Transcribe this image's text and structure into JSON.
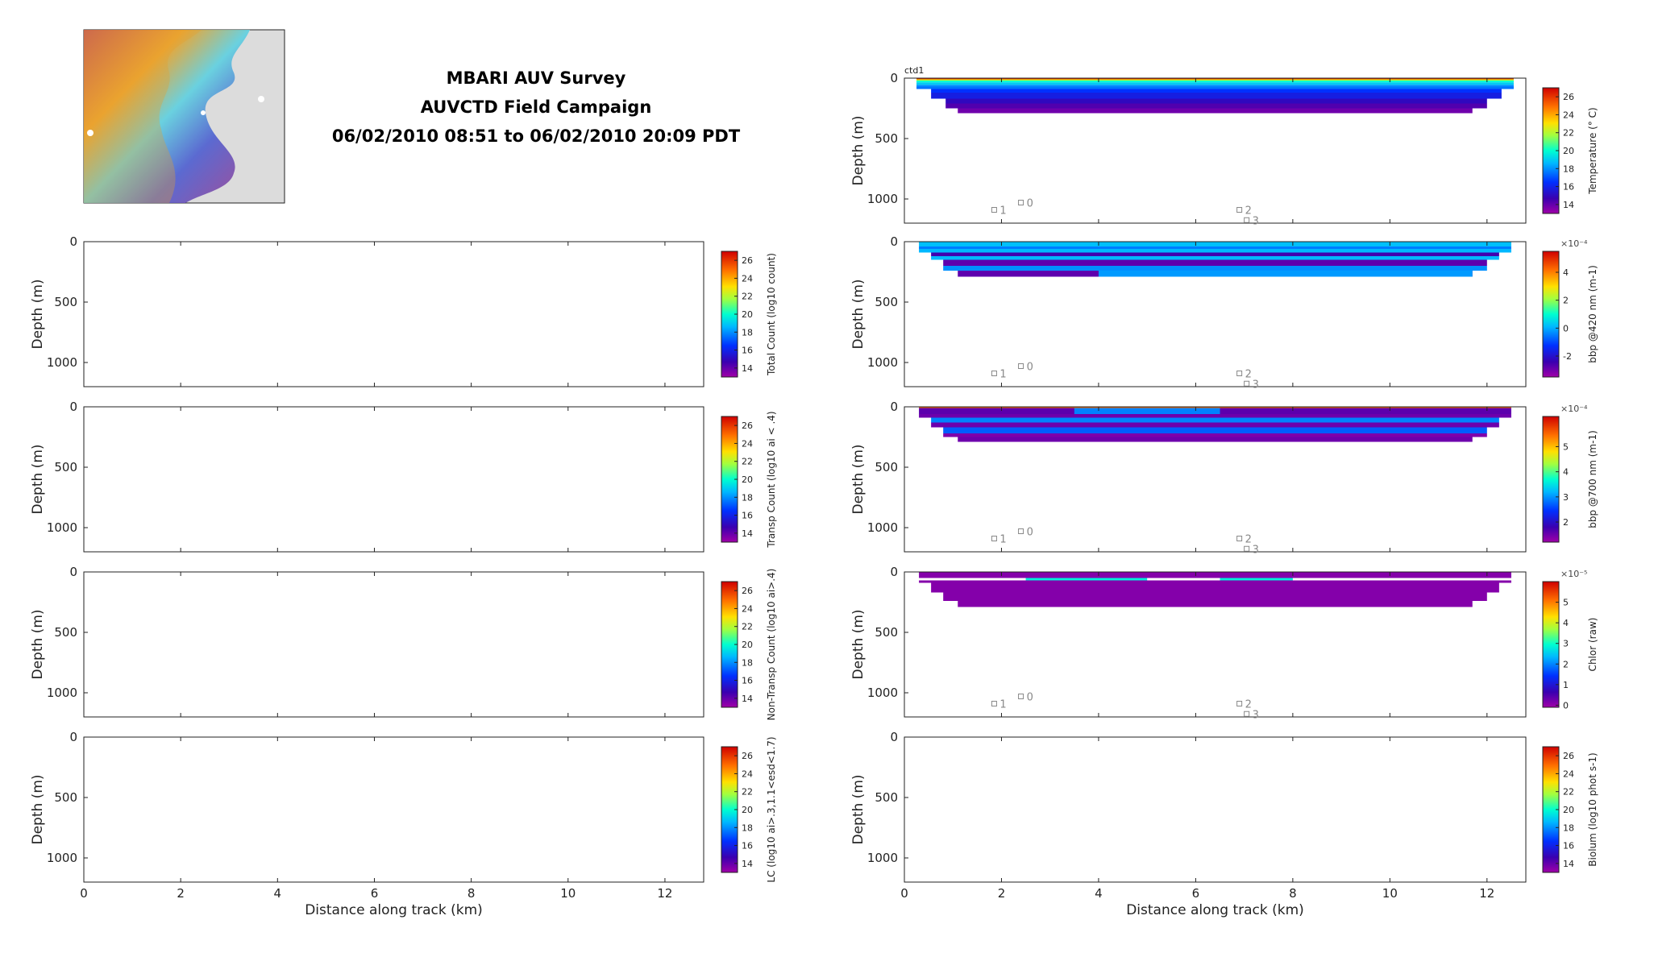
{
  "figure": {
    "title_lines": [
      "MBARI AUV Survey",
      "AUVCTD Field Campaign",
      "06/02/2010 08:51 to 06/02/2010 20:09 PDT"
    ],
    "map_inset": {
      "icon": "bathymetry-map-icon"
    }
  },
  "chart_data": [
    {
      "id": "total-count",
      "type": "heatmap",
      "column": "left",
      "row": 0,
      "xlim": [
        0,
        12.8
      ],
      "ylim": [
        1200,
        0
      ],
      "xticks": [
        0,
        2,
        4,
        6,
        8,
        10,
        12
      ],
      "yticks": [
        0,
        500,
        1000
      ],
      "xlabel": "",
      "ylabel": "Depth (m)",
      "colorbar": {
        "label": "Total Count (log10 count)",
        "range": [
          13,
          27
        ],
        "ticks": [
          "26",
          "24",
          "22",
          "20",
          "18",
          "16",
          "14"
        ]
      },
      "data": [],
      "markers": [],
      "plot_label": ""
    },
    {
      "id": "transp-count",
      "type": "heatmap",
      "column": "left",
      "row": 1,
      "xlim": [
        0,
        12.8
      ],
      "ylim": [
        1200,
        0
      ],
      "xticks": [
        0,
        2,
        4,
        6,
        8,
        10,
        12
      ],
      "yticks": [
        0,
        500,
        1000
      ],
      "xlabel": "",
      "ylabel": "Depth (m)",
      "colorbar": {
        "label": "Transp Count (log10 ai < .4)",
        "range": [
          13,
          27
        ],
        "ticks": [
          "26",
          "24",
          "22",
          "20",
          "18",
          "16",
          "14"
        ]
      },
      "data": [],
      "markers": [],
      "plot_label": ""
    },
    {
      "id": "non-transp-count",
      "type": "heatmap",
      "column": "left",
      "row": 2,
      "xlim": [
        0,
        12.8
      ],
      "ylim": [
        1200,
        0
      ],
      "xticks": [
        0,
        2,
        4,
        6,
        8,
        10,
        12
      ],
      "yticks": [
        0,
        500,
        1000
      ],
      "xlabel": "",
      "ylabel": "Depth (m)",
      "colorbar": {
        "label": "Non-Transp Count (log10 ai>.4)",
        "range": [
          13,
          27
        ],
        "ticks": [
          "26",
          "24",
          "22",
          "20",
          "18",
          "16",
          "14"
        ]
      },
      "data": [],
      "markers": [],
      "plot_label": ""
    },
    {
      "id": "lc",
      "type": "heatmap",
      "column": "left",
      "row": 3,
      "xlim": [
        0,
        12.8
      ],
      "ylim": [
        1200,
        0
      ],
      "xticks": [
        0,
        2,
        4,
        6,
        8,
        10,
        12
      ],
      "yticks": [
        0,
        500,
        1000
      ],
      "xlabel": "Distance along track (km)",
      "ylabel": "Depth (m)",
      "colorbar": {
        "label": "LC (log10 ai>.3,1.1<esd<1.7)",
        "range": [
          13,
          27
        ],
        "ticks": [
          "26",
          "24",
          "22",
          "20",
          "18",
          "16",
          "14"
        ]
      },
      "data": [],
      "markers": [],
      "plot_label": ""
    },
    {
      "id": "temperature",
      "type": "heatmap",
      "column": "right",
      "row": -1,
      "xlim": [
        0,
        12.8
      ],
      "ylim": [
        1200,
        0
      ],
      "xticks": [
        0,
        2,
        4,
        6,
        8,
        10,
        12
      ],
      "yticks": [
        0,
        500,
        1000
      ],
      "xlabel": "",
      "ylabel": "Depth (m)",
      "plot_label": "ctd1",
      "colorbar": {
        "label": "Temperature (° C)",
        "range": [
          13,
          27
        ],
        "ticks": [
          "26",
          "24",
          "22",
          "20",
          "18",
          "16",
          "14"
        ]
      },
      "data": [
        {
          "x": [
            0.25,
            12.55
          ],
          "y": [
            0,
            10
          ],
          "v": 26
        },
        {
          "x": [
            0.25,
            12.55
          ],
          "y": [
            10,
            20
          ],
          "v": 22.5
        },
        {
          "x": [
            0.25,
            12.55
          ],
          "y": [
            20,
            35
          ],
          "v": 20
        },
        {
          "x": [
            0.25,
            12.55
          ],
          "y": [
            35,
            55
          ],
          "v": 19
        },
        {
          "x": [
            0.25,
            12.55
          ],
          "y": [
            55,
            70
          ],
          "v": 18
        },
        {
          "x": [
            0.25,
            12.55
          ],
          "y": [
            70,
            90
          ],
          "v": 17.5
        },
        {
          "x": [
            0.55,
            12.3
          ],
          "y": [
            90,
            120
          ],
          "v": 16.5
        },
        {
          "x": [
            0.55,
            12.3
          ],
          "y": [
            120,
            170
          ],
          "v": 15.8
        },
        {
          "x": [
            0.85,
            12.0
          ],
          "y": [
            170,
            210
          ],
          "v": 15
        },
        {
          "x": [
            0.85,
            12.0
          ],
          "y": [
            210,
            250
          ],
          "v": 14.3
        },
        {
          "x": [
            1.1,
            11.7
          ],
          "y": [
            250,
            290
          ],
          "v": 13.8
        }
      ],
      "markers": [
        {
          "label": "0",
          "x": 2.4,
          "y": 1030
        },
        {
          "label": "1",
          "x": 1.85,
          "y": 1090
        },
        {
          "label": "2",
          "x": 6.9,
          "y": 1090
        },
        {
          "label": "3",
          "x": 7.05,
          "y": 1175
        }
      ]
    },
    {
      "id": "bbp420",
      "type": "heatmap",
      "column": "right",
      "row": 0,
      "xlim": [
        0,
        12.8
      ],
      "ylim": [
        1200,
        0
      ],
      "xticks": [
        0,
        2,
        4,
        6,
        8,
        10,
        12
      ],
      "yticks": [
        0,
        500,
        1000
      ],
      "xlabel": "",
      "ylabel": "Depth (m)",
      "plot_label": "",
      "colorbar": {
        "label": "bbp @420 nm (m-1)",
        "range": [
          -3.5,
          5.5
        ],
        "ticks": [
          "4",
          "2",
          "0",
          "-2"
        ],
        "multiplier": "×10⁻⁴"
      },
      "data": [
        {
          "x": [
            0.3,
            12.5
          ],
          "y": [
            0,
            40
          ],
          "v": 0.2
        },
        {
          "x": [
            0.3,
            12.5
          ],
          "y": [
            40,
            60
          ],
          "v": -0.5
        },
        {
          "x": [
            0.3,
            12.5
          ],
          "y": [
            60,
            90
          ],
          "v": 0.1
        },
        {
          "x": [
            0.55,
            12.25
          ],
          "y": [
            90,
            120
          ],
          "v": -2.5
        },
        {
          "x": [
            0.55,
            12.25
          ],
          "y": [
            120,
            150
          ],
          "v": 0.1
        },
        {
          "x": [
            0.8,
            12.0
          ],
          "y": [
            150,
            200
          ],
          "v": -2.8
        },
        {
          "x": [
            0.8,
            12.0
          ],
          "y": [
            200,
            240
          ],
          "v": -0.3
        },
        {
          "x": [
            1.1,
            11.7
          ],
          "y": [
            240,
            290
          ],
          "v": -2.8
        },
        {
          "x": [
            4.0,
            11.7
          ],
          "y": [
            240,
            290
          ],
          "v": -0.2
        }
      ],
      "markers": [
        {
          "label": "0",
          "x": 2.4,
          "y": 1030
        },
        {
          "label": "1",
          "x": 1.85,
          "y": 1090
        },
        {
          "label": "2",
          "x": 6.9,
          "y": 1090
        },
        {
          "label": "3",
          "x": 7.05,
          "y": 1175
        }
      ]
    },
    {
      "id": "bbp700",
      "type": "heatmap",
      "column": "right",
      "row": 1,
      "xlim": [
        0,
        12.8
      ],
      "ylim": [
        1200,
        0
      ],
      "xticks": [
        0,
        2,
        4,
        6,
        8,
        10,
        12
      ],
      "yticks": [
        0,
        500,
        1000
      ],
      "xlabel": "",
      "ylabel": "Depth (m)",
      "plot_label": "",
      "colorbar": {
        "label": "bbp @700 nm (m-1)",
        "range": [
          1.2,
          6.2
        ],
        "ticks": [
          "5",
          "4",
          "3",
          "2"
        ],
        "multiplier": "×10⁻⁴"
      },
      "data": [
        {
          "x": [
            0.3,
            12.5
          ],
          "y": [
            0,
            10
          ],
          "v": 5.5
        },
        {
          "x": [
            0.3,
            12.5
          ],
          "y": [
            10,
            60
          ],
          "v": 1.6
        },
        {
          "x": [
            3.5,
            6.5
          ],
          "y": [
            10,
            60
          ],
          "v": 2.9
        },
        {
          "x": [
            0.3,
            12.5
          ],
          "y": [
            60,
            90
          ],
          "v": 1.5
        },
        {
          "x": [
            0.55,
            12.25
          ],
          "y": [
            90,
            130
          ],
          "v": 2.9
        },
        {
          "x": [
            0.55,
            12.25
          ],
          "y": [
            130,
            170
          ],
          "v": 1.5
        },
        {
          "x": [
            0.8,
            12.0
          ],
          "y": [
            170,
            220
          ],
          "v": 2.7
        },
        {
          "x": [
            0.8,
            12.0
          ],
          "y": [
            220,
            250
          ],
          "v": 1.4
        },
        {
          "x": [
            1.1,
            11.7
          ],
          "y": [
            250,
            290
          ],
          "v": 1.5
        }
      ],
      "markers": [
        {
          "label": "0",
          "x": 2.4,
          "y": 1030
        },
        {
          "label": "1",
          "x": 1.85,
          "y": 1090
        },
        {
          "label": "2",
          "x": 6.9,
          "y": 1090
        },
        {
          "label": "3",
          "x": 7.05,
          "y": 1175
        }
      ]
    },
    {
      "id": "chlor",
      "type": "heatmap",
      "column": "right",
      "row": 2,
      "xlim": [
        0,
        12.8
      ],
      "ylim": [
        1200,
        0
      ],
      "xticks": [
        0,
        2,
        4,
        6,
        8,
        10,
        12
      ],
      "yticks": [
        0,
        500,
        1000
      ],
      "xlabel": "",
      "ylabel": "Depth (m)",
      "plot_label": "",
      "colorbar": {
        "label": "Chlor (raw)",
        "range": [
          -0.1,
          6.0
        ],
        "ticks": [
          "5",
          "4",
          "3",
          "2",
          "1",
          "0"
        ],
        "multiplier": "×10⁻⁵"
      },
      "data": [
        {
          "x": [
            0.3,
            12.5
          ],
          "y": [
            0,
            50
          ],
          "v": 0.1
        },
        {
          "x": [
            2.5,
            5.0
          ],
          "y": [
            50,
            70
          ],
          "v": 2.8
        },
        {
          "x": [
            6.5,
            8.0
          ],
          "y": [
            50,
            70
          ],
          "v": 2.8
        },
        {
          "x": [
            0.3,
            12.5
          ],
          "y": [
            70,
            90
          ],
          "v": 0.1
        },
        {
          "x": [
            0.55,
            12.25
          ],
          "y": [
            90,
            170
          ],
          "v": 0.1
        },
        {
          "x": [
            0.8,
            12.0
          ],
          "y": [
            170,
            240
          ],
          "v": 0.1
        },
        {
          "x": [
            1.1,
            11.7
          ],
          "y": [
            240,
            290
          ],
          "v": 0.1
        }
      ],
      "markers": [
        {
          "label": "0",
          "x": 2.4,
          "y": 1030
        },
        {
          "label": "1",
          "x": 1.85,
          "y": 1090
        },
        {
          "label": "2",
          "x": 6.9,
          "y": 1090
        },
        {
          "label": "3",
          "x": 7.05,
          "y": 1175
        }
      ]
    },
    {
      "id": "biolum",
      "type": "heatmap",
      "column": "right",
      "row": 3,
      "xlim": [
        0,
        12.8
      ],
      "ylim": [
        1200,
        0
      ],
      "xticks": [
        0,
        2,
        4,
        6,
        8,
        10,
        12
      ],
      "yticks": [
        0,
        500,
        1000
      ],
      "xlabel": "Distance along track (km)",
      "ylabel": "Depth (m)",
      "plot_label": "",
      "colorbar": {
        "label": "Biolum (log10 phot s-1)",
        "range": [
          13,
          27
        ],
        "ticks": [
          "26",
          "24",
          "22",
          "20",
          "18",
          "16",
          "14"
        ]
      },
      "data": [],
      "markers": []
    }
  ]
}
